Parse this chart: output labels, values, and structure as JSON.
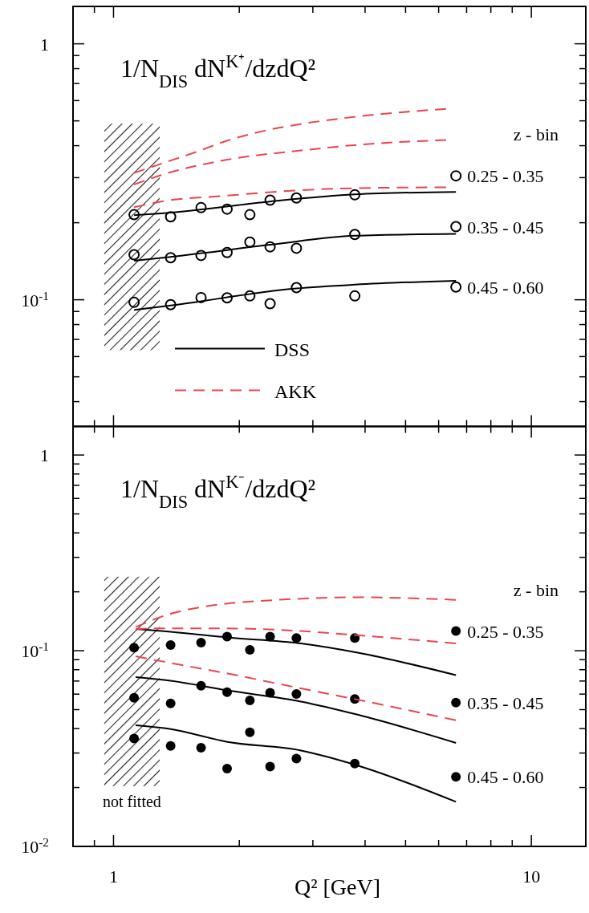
{
  "chart_data": [
    {
      "type": "scatter",
      "title": "1/N$_{DIS}$ dN$^{K⁺}$/dzdQ²",
      "legend_title": "z - bin",
      "log": "xy",
      "legend": "bottom left",
      "marker": "circle",
      "tick_labels": "y",
      "xlim": [
        0.8,
        13.5
      ],
      "xticks": [
        {
          "value": 0.9,
          "label": null
        },
        {
          "value": 1,
          "label": null
        },
        {
          "value": 2,
          "label": null
        },
        {
          "value": 3,
          "label": null
        },
        {
          "value": 4,
          "label": null
        },
        {
          "value": 5,
          "label": null
        },
        {
          "value": 6,
          "label": null
        },
        {
          "value": 7,
          "label": null
        },
        {
          "value": 8,
          "label": null
        },
        {
          "value": 9,
          "label": null
        },
        {
          "value": 10,
          "label": null
        }
      ],
      "ylim": [
        0.032,
        1.4
      ],
      "yticks": [
        {
          "value": 0.04,
          "label": null
        },
        {
          "value": 0.05,
          "label": null
        },
        {
          "value": 0.06,
          "label": null
        },
        {
          "value": 0.07,
          "label": null
        },
        {
          "value": 0.08,
          "label": null
        },
        {
          "value": 0.09,
          "label": null
        },
        {
          "value": 0.1,
          "label": "10$^{-1}$"
        },
        {
          "value": 0.2,
          "label": null
        },
        {
          "value": 0.3,
          "label": null
        },
        {
          "value": 0.4,
          "label": null
        },
        {
          "value": 0.5,
          "label": null
        },
        {
          "value": 0.6,
          "label": null
        },
        {
          "value": 0.7,
          "label": null
        },
        {
          "value": 0.8,
          "label": null
        },
        {
          "value": 0.9,
          "label": null
        },
        {
          "value": 1,
          "label": "1"
        }
      ],
      "bands": [
        {
          "axis": "x",
          "from": 0.95,
          "to": 1.29
        }
      ],
      "x": [
        1.12,
        1.37,
        1.62,
        1.87,
        2.12,
        2.37,
        2.74,
        3.78,
        6.6
      ],
      "series": [
        {
          "name": "0.25 - 0.35",
          "color": "#000000",
          "values": [
            0.215,
            0.211,
            0.229,
            0.226,
            0.215,
            0.245,
            0.25,
            0.257,
            0.305
          ]
        },
        {
          "name": "0.35 - 0.45",
          "color": "#000000",
          "values": [
            0.15,
            0.146,
            0.149,
            0.153,
            0.168,
            0.161,
            0.159,
            0.18,
            0.193
          ]
        },
        {
          "name": "0.45 - 0.60",
          "color": "#000000",
          "values": [
            0.0977,
            0.0957,
            0.102,
            0.1017,
            0.1035,
            0.0966,
            0.1115,
            0.1035,
            0.1122
          ]
        },
        {
          "name": "DSS",
          "type": "line",
          "marker": "none",
          "color": "#000000",
          "line_style": "solid",
          "x": [
            1.12,
            1.37,
            2.37,
            3.78,
            6.6
          ],
          "values": [
            0.214,
            0.219,
            0.242,
            0.258,
            0.264
          ]
        },
        {
          "type": "line",
          "marker": "none",
          "color": "#000000",
          "line_style": "solid",
          "x": [
            1.12,
            1.37,
            2.37,
            3.78,
            6.6
          ],
          "values": [
            0.142,
            0.147,
            0.164,
            0.178,
            0.181
          ]
        },
        {
          "type": "line",
          "marker": "none",
          "color": "#000000",
          "line_style": "solid",
          "x": [
            1.12,
            1.37,
            2.74,
            3.78,
            6.6
          ],
          "values": [
            0.0912,
            0.095,
            0.1107,
            0.1146,
            0.1186
          ]
        },
        {
          "name": "AKK",
          "type": "line",
          "marker": "none",
          "color": "#e8454f",
          "line_style": "dashed",
          "x": [
            1.12,
            1.3,
            1.57,
            1.86,
            2.29,
            2.81,
            3.84,
            6.25
          ],
          "values": [
            0.313,
            0.34,
            0.377,
            0.417,
            0.457,
            0.486,
            0.52,
            0.557
          ]
        },
        {
          "type": "line",
          "marker": "none",
          "color": "#e8454f",
          "line_style": "dashed",
          "x": [
            1.12,
            1.3,
            1.86,
            2.81,
            3.84,
            6.25
          ],
          "values": [
            0.282,
            0.307,
            0.352,
            0.383,
            0.403,
            0.421
          ]
        },
        {
          "type": "line",
          "marker": "none",
          "color": "#e8454f",
          "line_style": "dashed",
          "x": [
            1.12,
            1.3,
            1.86,
            2.81,
            3.84,
            6.25
          ],
          "values": [
            0.23,
            0.242,
            0.255,
            0.268,
            0.273,
            0.275
          ]
        }
      ]
    },
    {
      "type": "scatter",
      "title": "1/N$_{DIS}$ dN$^{K⁻}$/dzdQ²",
      "legend_title": "z - bin",
      "xlabel": "Q² [GeV]",
      "log": "xy",
      "marker": "circle",
      "legend": "right",
      "xlim": [
        0.8,
        13.5
      ],
      "xticks": [
        {
          "value": 0.9,
          "label": null
        },
        1,
        {
          "value": 2,
          "label": null
        },
        {
          "value": 3,
          "label": null
        },
        {
          "value": 4,
          "label": null
        },
        {
          "value": 5,
          "label": null
        },
        {
          "value": 6,
          "label": null
        },
        {
          "value": 7,
          "label": null
        },
        {
          "value": 8,
          "label": null
        },
        {
          "value": 9,
          "label": null
        },
        10
      ],
      "ylim": [
        0.01,
        1.4
      ],
      "yticks": [
        {
          "value": 0.01,
          "label": "10$^{-2}$"
        },
        {
          "value": 0.02,
          "label": null
        },
        {
          "value": 0.03,
          "label": null
        },
        {
          "value": 0.04,
          "label": null
        },
        {
          "value": 0.05,
          "label": null
        },
        {
          "value": 0.06,
          "label": null
        },
        {
          "value": 0.07,
          "label": null
        },
        {
          "value": 0.08,
          "label": null
        },
        {
          "value": 0.09,
          "label": null
        },
        {
          "value": 0.1,
          "label": "10$^{-1}$"
        },
        {
          "value": 0.2,
          "label": null
        },
        {
          "value": 0.3,
          "label": null
        },
        {
          "value": 0.4,
          "label": null
        },
        {
          "value": 0.5,
          "label": null
        },
        {
          "value": 0.6,
          "label": null
        },
        {
          "value": 0.7,
          "label": null
        },
        {
          "value": 0.8,
          "label": null
        },
        {
          "value": 0.9,
          "label": null
        },
        {
          "value": 1,
          "label": "1"
        }
      ],
      "bands": [
        {
          "axis": "x",
          "from": 0.95,
          "to": 1.29,
          "label": "not fitted"
        }
      ],
      "x": [
        1.12,
        1.37,
        1.62,
        1.87,
        2.12,
        2.37,
        2.74,
        3.78,
        6.6
      ],
      "series": [
        {
          "name": "0.25 - 0.35",
          "color": "#000000",
          "values": [
            0.1036,
            0.107,
            0.11,
            0.118,
            0.101,
            0.118,
            0.116,
            0.116,
            0.126
          ]
        },
        {
          "name": "0.35 - 0.45",
          "color": "#000000",
          "values": [
            0.0575,
            0.0538,
            0.0662,
            0.0614,
            0.0557,
            0.0609,
            0.0601,
            0.0567,
            0.0543
          ]
        },
        {
          "name": "0.45 - 0.60",
          "color": "#000000",
          "values": [
            0.0356,
            0.0326,
            0.0319,
            0.025,
            0.0383,
            0.0256,
            0.0281,
            0.0265,
            0.0227
          ]
        },
        {
          "type": "line",
          "marker": "none",
          "color": "#000000",
          "line_style": "solid",
          "x": [
            1.13,
            1.37,
            1.86,
            2.81,
            3.84,
            6.6
          ],
          "values": [
            0.129,
            0.125,
            0.117,
            0.109,
            0.0978,
            0.075
          ]
        },
        {
          "type": "line",
          "marker": "none",
          "color": "#000000",
          "line_style": "solid",
          "x": [
            1.13,
            1.37,
            1.86,
            2.81,
            3.84,
            6.6
          ],
          "values": [
            0.0733,
            0.0702,
            0.0628,
            0.055,
            0.0471,
            0.0338
          ]
        },
        {
          "type": "line",
          "marker": "none",
          "color": "#000000",
          "line_style": "solid",
          "x": [
            1.13,
            1.37,
            1.86,
            2.81,
            3.84,
            6.6
          ],
          "values": [
            0.0416,
            0.0398,
            0.0343,
            0.0309,
            0.0259,
            0.0169
          ]
        },
        {
          "type": "line",
          "marker": "none",
          "color": "#e8454f",
          "line_style": "dashed",
          "x": [
            1.13,
            1.3,
            1.86,
            2.29,
            3.84,
            6.6
          ],
          "values": [
            0.132,
            0.149,
            0.174,
            0.18,
            0.1875,
            0.182
          ]
        },
        {
          "type": "line",
          "marker": "none",
          "color": "#e8454f",
          "line_style": "dashed",
          "x": [
            1.13,
            1.3,
            1.86,
            2.81,
            3.84,
            6.6
          ],
          "values": [
            0.129,
            0.13,
            0.13,
            0.126,
            0.12,
            0.109
          ]
        },
        {
          "type": "line",
          "marker": "none",
          "color": "#e8454f",
          "line_style": "dashed",
          "x": [
            1.13,
            1.3,
            1.86,
            2.81,
            3.84,
            6.6
          ],
          "values": [
            0.0936,
            0.0884,
            0.0767,
            0.0642,
            0.0562,
            0.0441
          ]
        }
      ]
    }
  ]
}
